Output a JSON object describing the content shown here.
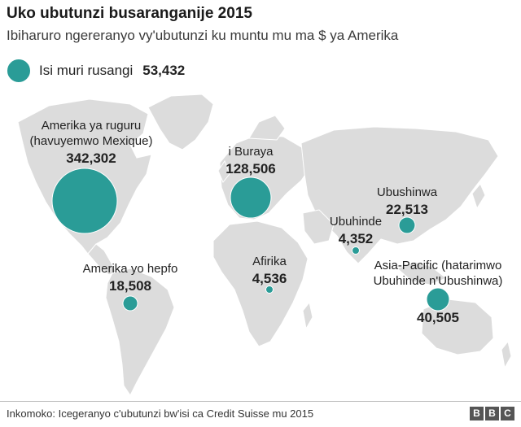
{
  "header": {
    "title": "Uko ubutunzi busaranganije 2015",
    "subtitle": "Ibiharuro ngereranyo vy'ubutunzi ku muntu mu ma $ ya Amerika"
  },
  "legend": {
    "label": "Isi muri rusangi",
    "value": "53,432",
    "value_number": 53432
  },
  "regions": [
    {
      "id": "north-america",
      "label_line1": "Amerika ya ruguru",
      "label_line2": "(havuyemwo Mexique)",
      "value": "342,302",
      "value_number": 342302
    },
    {
      "id": "europe",
      "label_line1": "i Buraya",
      "label_line2": "",
      "value": "128,506",
      "value_number": 128506
    },
    {
      "id": "china",
      "label_line1": "Ubushinwa",
      "label_line2": "",
      "value": "22,513",
      "value_number": 22513
    },
    {
      "id": "india",
      "label_line1": "Ubuhinde",
      "label_line2": "",
      "value": "4,352",
      "value_number": 4352
    },
    {
      "id": "south-america",
      "label_line1": "Amerika yo hepfo",
      "label_line2": "",
      "value": "18,508",
      "value_number": 18508
    },
    {
      "id": "africa",
      "label_line1": "Afirika",
      "label_line2": "",
      "value": "4,536",
      "value_number": 4536
    },
    {
      "id": "asia-pacific",
      "label_line1": "Asia-Pacific (hatarimwo",
      "label_line2": "Ubuhinde n'Ubushinwa)",
      "value": "40,505",
      "value_number": 40505
    }
  ],
  "colors": {
    "bubble": "#2a9c97",
    "land": "#dcdcdc",
    "background": "#ffffff"
  },
  "footer": {
    "source": "Inkomoko: Icegeranyo c'ubutunzi bw'isi ca Credit Suisse mu 2015",
    "logo_letters": [
      "B",
      "B",
      "C"
    ]
  }
}
